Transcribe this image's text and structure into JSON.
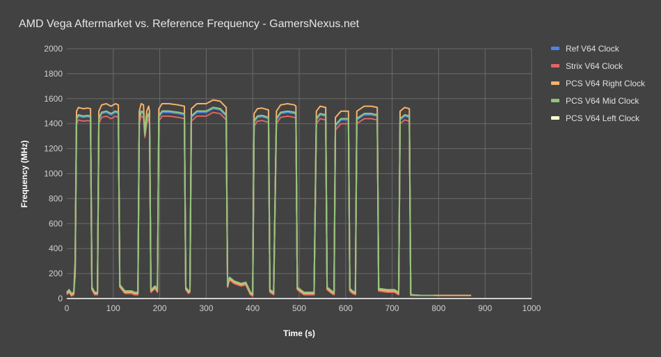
{
  "chart_data": {
    "type": "line",
    "title": "AMD Vega Aftermarket vs. Reference Frequency - GamersNexus.net",
    "xlabel": "Time (s)",
    "ylabel": "Frequency (MHz)",
    "xlim": [
      0,
      1000
    ],
    "ylim": [
      0,
      2000
    ],
    "xticks": [
      0,
      100,
      200,
      300,
      400,
      500,
      600,
      700,
      800,
      900,
      1000
    ],
    "yticks": [
      0,
      200,
      400,
      600,
      800,
      1000,
      1200,
      1400,
      1600,
      1800,
      2000
    ],
    "grid": true,
    "legend_position": "right",
    "x": [
      0,
      5,
      10,
      15,
      18,
      21,
      25,
      35,
      45,
      51,
      54,
      60,
      66,
      69,
      75,
      85,
      95,
      105,
      111,
      114,
      125,
      135,
      140,
      145,
      150,
      153,
      156,
      160,
      165,
      168,
      172,
      176,
      178,
      181,
      190,
      195,
      198,
      205,
      220,
      240,
      253,
      256,
      262,
      265,
      268,
      280,
      300,
      315,
      330,
      343,
      346,
      350,
      360,
      375,
      385,
      395,
      400,
      403,
      410,
      420,
      434,
      437,
      445,
      451,
      460,
      475,
      490,
      493,
      496,
      510,
      525,
      532,
      537,
      545,
      557,
      560,
      570,
      575,
      578,
      590,
      606,
      609,
      615,
      621,
      624,
      640,
      655,
      668,
      671,
      690,
      705,
      714,
      717,
      727,
      737,
      740,
      760,
      790,
      830,
      870
    ],
    "series": [
      {
        "name": "Ref V64 Clock",
        "color": "#4a86e8",
        "values": [
          40,
          60,
          30,
          40,
          200,
          1430,
          1460,
          1450,
          1455,
          1450,
          80,
          40,
          40,
          1430,
          1480,
          1490,
          1470,
          1490,
          1480,
          100,
          50,
          50,
          50,
          40,
          40,
          40,
          1430,
          1490,
          1480,
          1300,
          1430,
          1470,
          1430,
          60,
          90,
          60,
          1450,
          1490,
          1490,
          1480,
          1470,
          80,
          50,
          60,
          1450,
          1490,
          1490,
          1520,
          1510,
          1460,
          100,
          160,
          130,
          110,
          120,
          40,
          30,
          1410,
          1450,
          1455,
          1440,
          60,
          40,
          1430,
          1480,
          1490,
          1480,
          1470,
          80,
          40,
          40,
          40,
          1430,
          1470,
          1460,
          80,
          50,
          40,
          1380,
          1430,
          1430,
          70,
          50,
          40,
          1430,
          1470,
          1470,
          1460,
          70,
          60,
          60,
          40,
          1430,
          1460,
          1450,
          30,
          25,
          25,
          null,
          null
        ]
      },
      {
        "name": "Strix V64 Clock",
        "color": "#e06666",
        "values": [
          30,
          50,
          20,
          30,
          200,
          1400,
          1430,
          1420,
          1425,
          1420,
          70,
          30,
          30,
          1400,
          1450,
          1460,
          1440,
          1460,
          1450,
          90,
          40,
          40,
          40,
          30,
          30,
          30,
          1400,
          1460,
          1450,
          1290,
          1400,
          1440,
          1400,
          50,
          80,
          50,
          1420,
          1460,
          1460,
          1450,
          1440,
          70,
          40,
          50,
          1420,
          1460,
          1460,
          1490,
          1480,
          1430,
          90,
          150,
          120,
          100,
          110,
          30,
          20,
          1380,
          1420,
          1425,
          1410,
          50,
          30,
          1400,
          1450,
          1460,
          1450,
          1440,
          70,
          30,
          30,
          30,
          1400,
          1440,
          1430,
          70,
          40,
          30,
          1350,
          1400,
          1400,
          60,
          40,
          30,
          1400,
          1440,
          1440,
          1430,
          60,
          50,
          50,
          30,
          1400,
          1430,
          1420,
          25,
          25,
          25,
          null,
          null
        ]
      },
      {
        "name": "PCS V64 Right Clock",
        "color": "#f6b26b",
        "values": [
          40,
          60,
          30,
          40,
          300,
          1500,
          1530,
          1520,
          1525,
          1520,
          80,
          40,
          40,
          1500,
          1550,
          1560,
          1540,
          1560,
          1550,
          100,
          50,
          50,
          50,
          40,
          40,
          40,
          1500,
          1560,
          1550,
          1320,
          1500,
          1540,
          1500,
          60,
          90,
          60,
          1520,
          1560,
          1560,
          1550,
          1540,
          80,
          50,
          60,
          1520,
          1560,
          1560,
          1590,
          1580,
          1530,
          100,
          160,
          130,
          110,
          120,
          40,
          30,
          1480,
          1520,
          1525,
          1510,
          60,
          40,
          1500,
          1550,
          1560,
          1550,
          1540,
          80,
          40,
          40,
          40,
          1500,
          1540,
          1530,
          80,
          50,
          40,
          1450,
          1500,
          1500,
          70,
          50,
          40,
          1500,
          1540,
          1540,
          1530,
          70,
          60,
          60,
          40,
          1500,
          1530,
          1520,
          30,
          25,
          25,
          25,
          25
        ]
      },
      {
        "name": "PCS V64 Mid Clock",
        "color": "#93c47d",
        "values": [
          50,
          70,
          40,
          50,
          200,
          1440,
          1470,
          1460,
          1465,
          1460,
          90,
          50,
          50,
          1440,
          1490,
          1500,
          1480,
          1500,
          1490,
          110,
          60,
          60,
          60,
          50,
          50,
          50,
          1440,
          1500,
          1490,
          1310,
          1440,
          1480,
          1440,
          70,
          100,
          70,
          1460,
          1500,
          1500,
          1490,
          1480,
          90,
          60,
          70,
          1460,
          1500,
          1500,
          1530,
          1520,
          1470,
          110,
          170,
          140,
          120,
          130,
          50,
          40,
          1420,
          1460,
          1465,
          1450,
          70,
          50,
          1440,
          1490,
          1500,
          1490,
          1480,
          90,
          50,
          50,
          50,
          1440,
          1480,
          1470,
          90,
          60,
          50,
          1390,
          1440,
          1440,
          80,
          60,
          50,
          1440,
          1480,
          1480,
          1470,
          80,
          70,
          70,
          50,
          1440,
          1470,
          1460,
          30,
          25,
          25,
          null,
          null
        ]
      },
      {
        "name": "PCS V64 Left Clock",
        "color": "#ffffcc",
        "values": [
          50,
          70,
          40,
          50,
          200,
          1440,
          1470,
          1460,
          1465,
          1460,
          90,
          50,
          50,
          1440,
          1490,
          1500,
          1480,
          1500,
          1490,
          110,
          60,
          60,
          60,
          50,
          50,
          50,
          1440,
          1500,
          1490,
          1310,
          1440,
          1480,
          1440,
          70,
          100,
          70,
          1460,
          1500,
          1500,
          1490,
          1480,
          90,
          60,
          70,
          1460,
          1500,
          1500,
          1530,
          1520,
          1470,
          110,
          170,
          140,
          120,
          130,
          50,
          40,
          1420,
          1460,
          1465,
          1450,
          70,
          50,
          1440,
          1490,
          1500,
          1490,
          1480,
          90,
          50,
          50,
          50,
          1440,
          1480,
          1470,
          90,
          60,
          50,
          1390,
          1440,
          1440,
          80,
          60,
          50,
          1440,
          1480,
          1480,
          1470,
          80,
          70,
          70,
          50,
          1440,
          1470,
          1460,
          30,
          25,
          25,
          null,
          null
        ]
      }
    ],
    "draw_order": [
      "PCS V64 Left Clock",
      "Ref V64 Clock",
      "Strix V64 Clock",
      "PCS V64 Right Clock",
      "PCS V64 Mid Clock"
    ]
  }
}
